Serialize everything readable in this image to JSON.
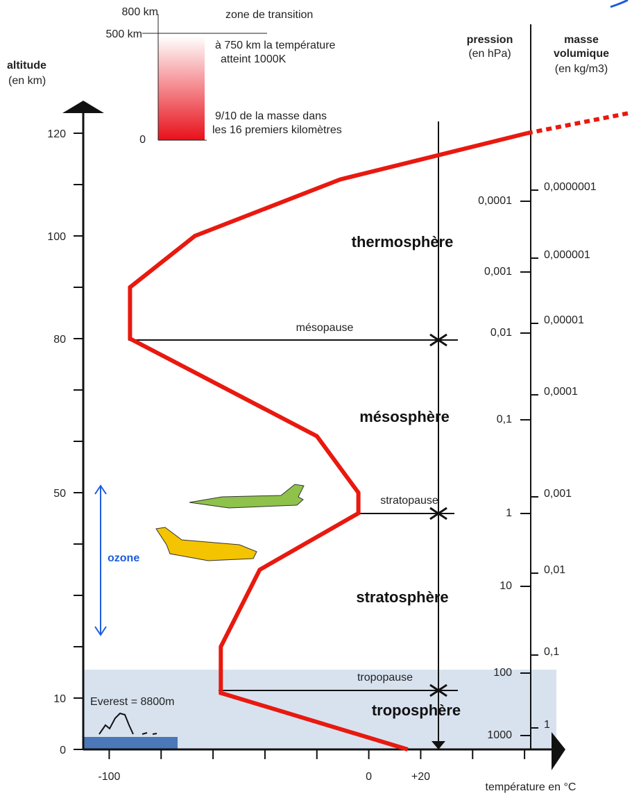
{
  "chart_data": {
    "type": "line",
    "y_label": "altitude",
    "y_unit": "(en km)",
    "x_label": "température en °C",
    "series": [
      {
        "color": "#e8190f",
        "x": [
          15,
          -57,
          -57,
          -42,
          -4,
          -4,
          -20,
          -92,
          -92,
          -67,
          -11,
          61
        ],
        "values": [
          0,
          11,
          20,
          35,
          46,
          50,
          61,
          80,
          90,
          100,
          111,
          120
        ]
      },
      {
        "color": "#e8190f",
        "dashed": true,
        "x": [
          61,
          101
        ],
        "values": [
          120,
          124
        ]
      }
    ],
    "xlim": [
      -110,
      72
    ],
    "ylim": [
      0,
      125
    ],
    "xticks": [
      -100,
      {
        "value": -80,
        "label": null
      },
      {
        "value": -60,
        "label": null
      },
      {
        "value": -40,
        "label": null
      },
      {
        "value": -20,
        "label": null
      },
      0,
      {
        "value": 20,
        "label": "+20"
      },
      {
        "value": 40,
        "label": null
      },
      {
        "value": 60,
        "label": null
      }
    ],
    "yticks": [
      0,
      10,
      {
        "value": 20,
        "label": null
      },
      {
        "value": 30,
        "label": null
      },
      {
        "value": 40,
        "label": null
      },
      50,
      {
        "value": 60,
        "label": null
      },
      {
        "value": 70,
        "label": null
      },
      80,
      {
        "value": 90,
        "label": null
      },
      100,
      {
        "value": 110,
        "label": null
      },
      120
    ]
  },
  "layers": [
    "thermosphère",
    "mésosphère",
    "stratosphère",
    "troposphère"
  ],
  "boundaries": [
    "mésopause",
    "stratopause",
    "tropopause"
  ],
  "ozone": "ozone",
  "everest": "Everest = 8800m",
  "pressure_axis": {
    "title": "pression",
    "unit": "(en hPa)",
    "labels": [
      "0,0001",
      "0,001",
      "0,01",
      "0,1",
      "1",
      "10",
      "100",
      "1000"
    ]
  },
  "density_axis": {
    "title_lines": [
      "masse",
      "volumique"
    ],
    "unit": "(en kg/m3)",
    "labels": [
      "0,0000001",
      "0,000001",
      "0,00001",
      "0,0001",
      "0,001",
      "0,01",
      "0,1",
      "1"
    ]
  },
  "inset": {
    "labels": [
      "800 km",
      "500 km",
      "0"
    ],
    "title": "zone de transition",
    "notes": [
      "à 750 km la température",
      "atteint 1000K",
      "9/10 de la  masse dans",
      "les 16 premiers kilomètres"
    ]
  }
}
